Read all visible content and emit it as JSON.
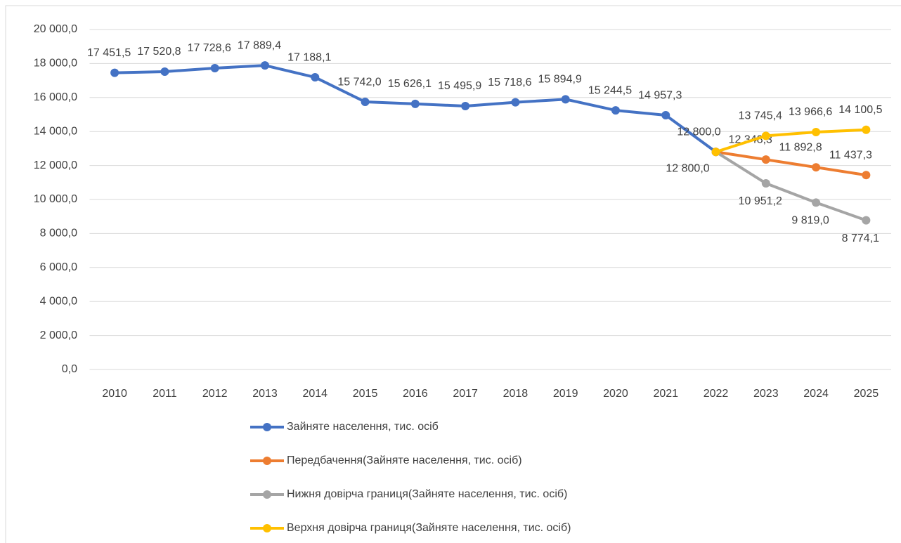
{
  "chart_data": {
    "type": "line",
    "categories": [
      "2010",
      "2011",
      "2012",
      "2013",
      "2014",
      "2015",
      "2016",
      "2017",
      "2018",
      "2019",
      "2020",
      "2021",
      "2022",
      "2023",
      "2024",
      "2025"
    ],
    "series": [
      {
        "name": "Зайняте населення, тис. осіб",
        "color": "#4472c4",
        "values": [
          17451.5,
          17520.8,
          17728.6,
          17889.4,
          17188.1,
          15742.0,
          15626.1,
          15495.9,
          15718.6,
          15894.9,
          15244.5,
          14957.3,
          12800.0,
          null,
          null,
          null
        ],
        "value_labels": [
          "17 451,5",
          "17 520,8",
          "17 728,6",
          "17 889,4",
          "17 188,1",
          "15 742,0",
          "15 626,1",
          "15 495,9",
          "15 718,6",
          "15 894,9",
          "15 244,5",
          "14 957,3",
          "12 800,0",
          null,
          null,
          null
        ]
      },
      {
        "name": "Передбачення(Зайняте населення, тис. осіб)",
        "color": "#ed7d31",
        "values": [
          null,
          null,
          null,
          null,
          null,
          null,
          null,
          null,
          null,
          null,
          null,
          null,
          12800.0,
          12348.3,
          11892.8,
          11437.3
        ],
        "value_labels": [
          null,
          null,
          null,
          null,
          null,
          null,
          null,
          null,
          null,
          null,
          null,
          null,
          null,
          "12 348,3",
          "11 892,8",
          "11 437,3"
        ]
      },
      {
        "name": "Нижня довірча границя(Зайняте населення, тис. осіб)",
        "color": "#a5a5a5",
        "values": [
          null,
          null,
          null,
          null,
          null,
          null,
          null,
          null,
          null,
          null,
          null,
          null,
          12800.0,
          10951.2,
          9819.0,
          8774.1
        ],
        "value_labels": [
          null,
          null,
          null,
          null,
          null,
          null,
          null,
          null,
          null,
          null,
          null,
          null,
          "12 800,0",
          "10 951,2",
          "9 819,0",
          "8 774,1"
        ]
      },
      {
        "name": "Верхня довірча границя(Зайняте населення, тис. осіб)",
        "color": "#ffc000",
        "values": [
          null,
          null,
          null,
          null,
          null,
          null,
          null,
          null,
          null,
          null,
          null,
          null,
          12800.0,
          13745.4,
          13966.6,
          14100.5
        ],
        "value_labels": [
          null,
          null,
          null,
          null,
          null,
          null,
          null,
          null,
          null,
          null,
          null,
          null,
          null,
          "13 745,4",
          "13 966,6",
          "14 100,5"
        ]
      }
    ],
    "ylim": [
      0,
      20000
    ],
    "yticks": [
      {
        "value": 0,
        "label": "0,0"
      },
      {
        "value": 2000,
        "label": "2 000,0"
      },
      {
        "value": 4000,
        "label": "4 000,0"
      },
      {
        "value": 6000,
        "label": "6 000,0"
      },
      {
        "value": 8000,
        "label": "8 000,0"
      },
      {
        "value": 10000,
        "label": "10 000,0"
      },
      {
        "value": 12000,
        "label": "12 000,0"
      },
      {
        "value": 14000,
        "label": "14 000,0"
      },
      {
        "value": 16000,
        "label": "16 000,0"
      },
      {
        "value": 18000,
        "label": "18 000,0"
      },
      {
        "value": 20000,
        "label": "20 000,0"
      }
    ],
    "grid": true,
    "legend": "bottom"
  }
}
